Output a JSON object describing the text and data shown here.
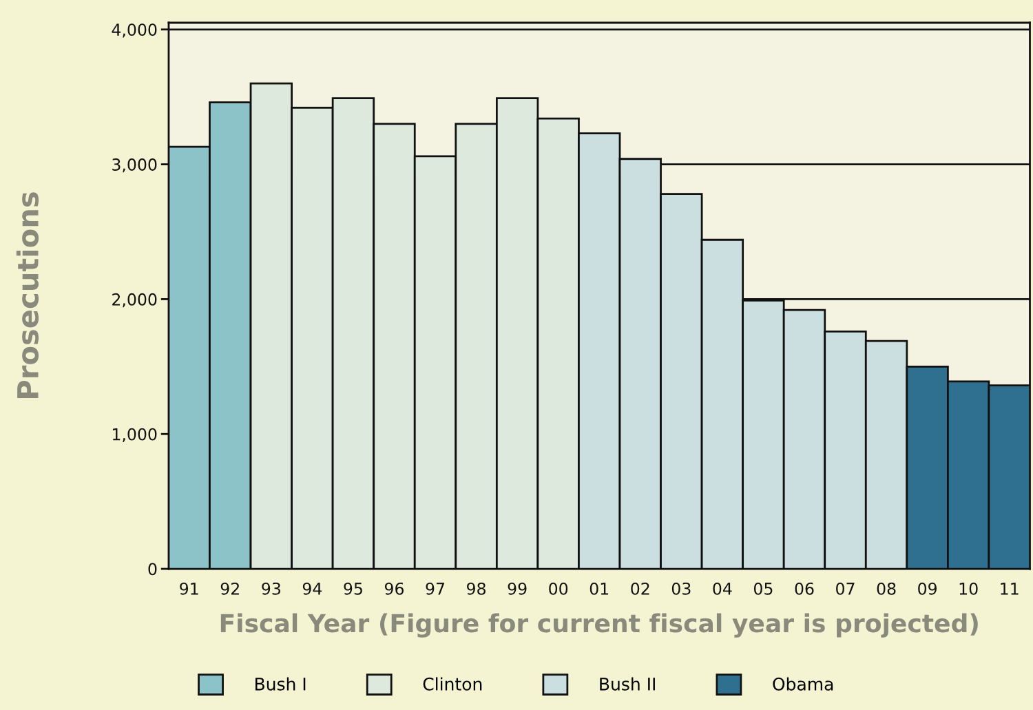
{
  "chart_data": {
    "type": "bar",
    "xlabel": "Fiscal Year (Figure for current fiscal year is projected)",
    "ylabel": "Prosecutions",
    "categories": [
      "91",
      "92",
      "93",
      "94",
      "95",
      "96",
      "97",
      "98",
      "99",
      "00",
      "01",
      "02",
      "03",
      "04",
      "05",
      "06",
      "07",
      "08",
      "09",
      "10",
      "11"
    ],
    "series": [
      {
        "name": "Bush I",
        "color": "#8cc3c8",
        "values": [
          3130,
          3460,
          null,
          null,
          null,
          null,
          null,
          null,
          null,
          null,
          null,
          null,
          null,
          null,
          null,
          null,
          null,
          null,
          null,
          null,
          null
        ]
      },
      {
        "name": "Clinton",
        "color": "#dce9dc",
        "values": [
          null,
          null,
          3600,
          3420,
          3490,
          3300,
          3060,
          3300,
          3490,
          3340,
          null,
          null,
          null,
          null,
          null,
          null,
          null,
          null,
          null,
          null,
          null
        ]
      },
      {
        "name": "Bush II",
        "color": "#cbdfe0",
        "values": [
          null,
          null,
          null,
          null,
          null,
          null,
          null,
          null,
          null,
          null,
          3230,
          3040,
          2780,
          2440,
          1990,
          1920,
          1760,
          1690,
          null,
          null,
          null
        ]
      },
      {
        "name": "Obama",
        "color": "#2f6f90",
        "values": [
          null,
          null,
          null,
          null,
          null,
          null,
          null,
          null,
          null,
          null,
          null,
          null,
          null,
          null,
          null,
          null,
          null,
          null,
          1500,
          1390,
          1360
        ]
      }
    ],
    "ylim": [
      0,
      4050
    ],
    "yticks": [
      {
        "value": 0,
        "label": "0"
      },
      {
        "value": 1000,
        "label": "1,000"
      },
      {
        "value": 2000,
        "label": "2,000"
      },
      {
        "value": 3000,
        "label": "3,000"
      },
      {
        "value": 4000,
        "label": "4,000"
      }
    ],
    "grid": "y",
    "legend": "bottom"
  }
}
